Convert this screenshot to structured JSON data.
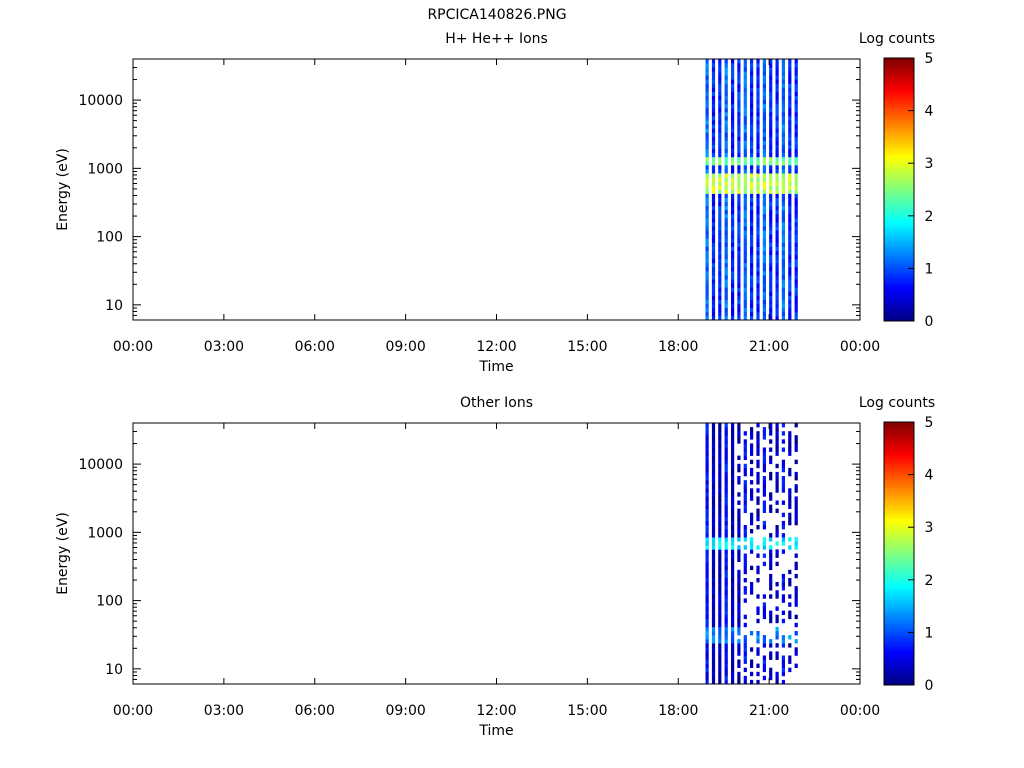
{
  "figure": {
    "title": "RPCICA140826.PNG"
  },
  "chart_data": [
    {
      "type": "heatmap",
      "title": "H+ He++ Ions",
      "xlabel": "Time",
      "ylabel": "Energy (eV)",
      "x_ticks": [
        "00:00",
        "03:00",
        "06:00",
        "09:00",
        "12:00",
        "15:00",
        "18:00",
        "21:00",
        "00:00"
      ],
      "x_range_hours": [
        0,
        24
      ],
      "y_scale": "log",
      "y_ticks": [
        10,
        100,
        1000,
        10000
      ],
      "y_tick_labels": [
        "10",
        "100",
        "1000",
        "10000"
      ],
      "y_range": [
        6,
        40000
      ],
      "colorbar": {
        "label": "Log counts",
        "range": [
          0,
          5
        ],
        "ticks": [
          "0",
          "1",
          "2",
          "3",
          "4",
          "5"
        ],
        "colormap": "jet"
      },
      "grid": false,
      "data_extent_hours": [
        18.9,
        21.85
      ],
      "bands": [
        {
          "energy_range": [
            400,
            800
          ],
          "level": 2.8
        },
        {
          "energy_range": [
            1100,
            1500
          ],
          "level": 2.4
        }
      ],
      "background_level": 0.8,
      "sparse": false
    },
    {
      "type": "heatmap",
      "title": "Other Ions",
      "xlabel": "Time",
      "ylabel": "Energy (eV)",
      "x_ticks": [
        "00:00",
        "03:00",
        "06:00",
        "09:00",
        "12:00",
        "15:00",
        "18:00",
        "21:00",
        "00:00"
      ],
      "x_range_hours": [
        0,
        24
      ],
      "y_scale": "log",
      "y_ticks": [
        10,
        100,
        1000,
        10000
      ],
      "y_tick_labels": [
        "10",
        "100",
        "1000",
        "10000"
      ],
      "y_range": [
        6,
        40000
      ],
      "colorbar": {
        "label": "Log counts",
        "range": [
          0,
          5
        ],
        "ticks": [
          "0",
          "1",
          "2",
          "3",
          "4",
          "5"
        ],
        "colormap": "jet"
      },
      "grid": false,
      "data_extent_hours": [
        18.9,
        21.85
      ],
      "bands": [
        {
          "energy_range": [
            550,
            800
          ],
          "level": 1.8
        },
        {
          "energy_range": [
            25,
            40
          ],
          "level": 1.2
        }
      ],
      "background_level": 0.3,
      "sparse": true
    }
  ]
}
